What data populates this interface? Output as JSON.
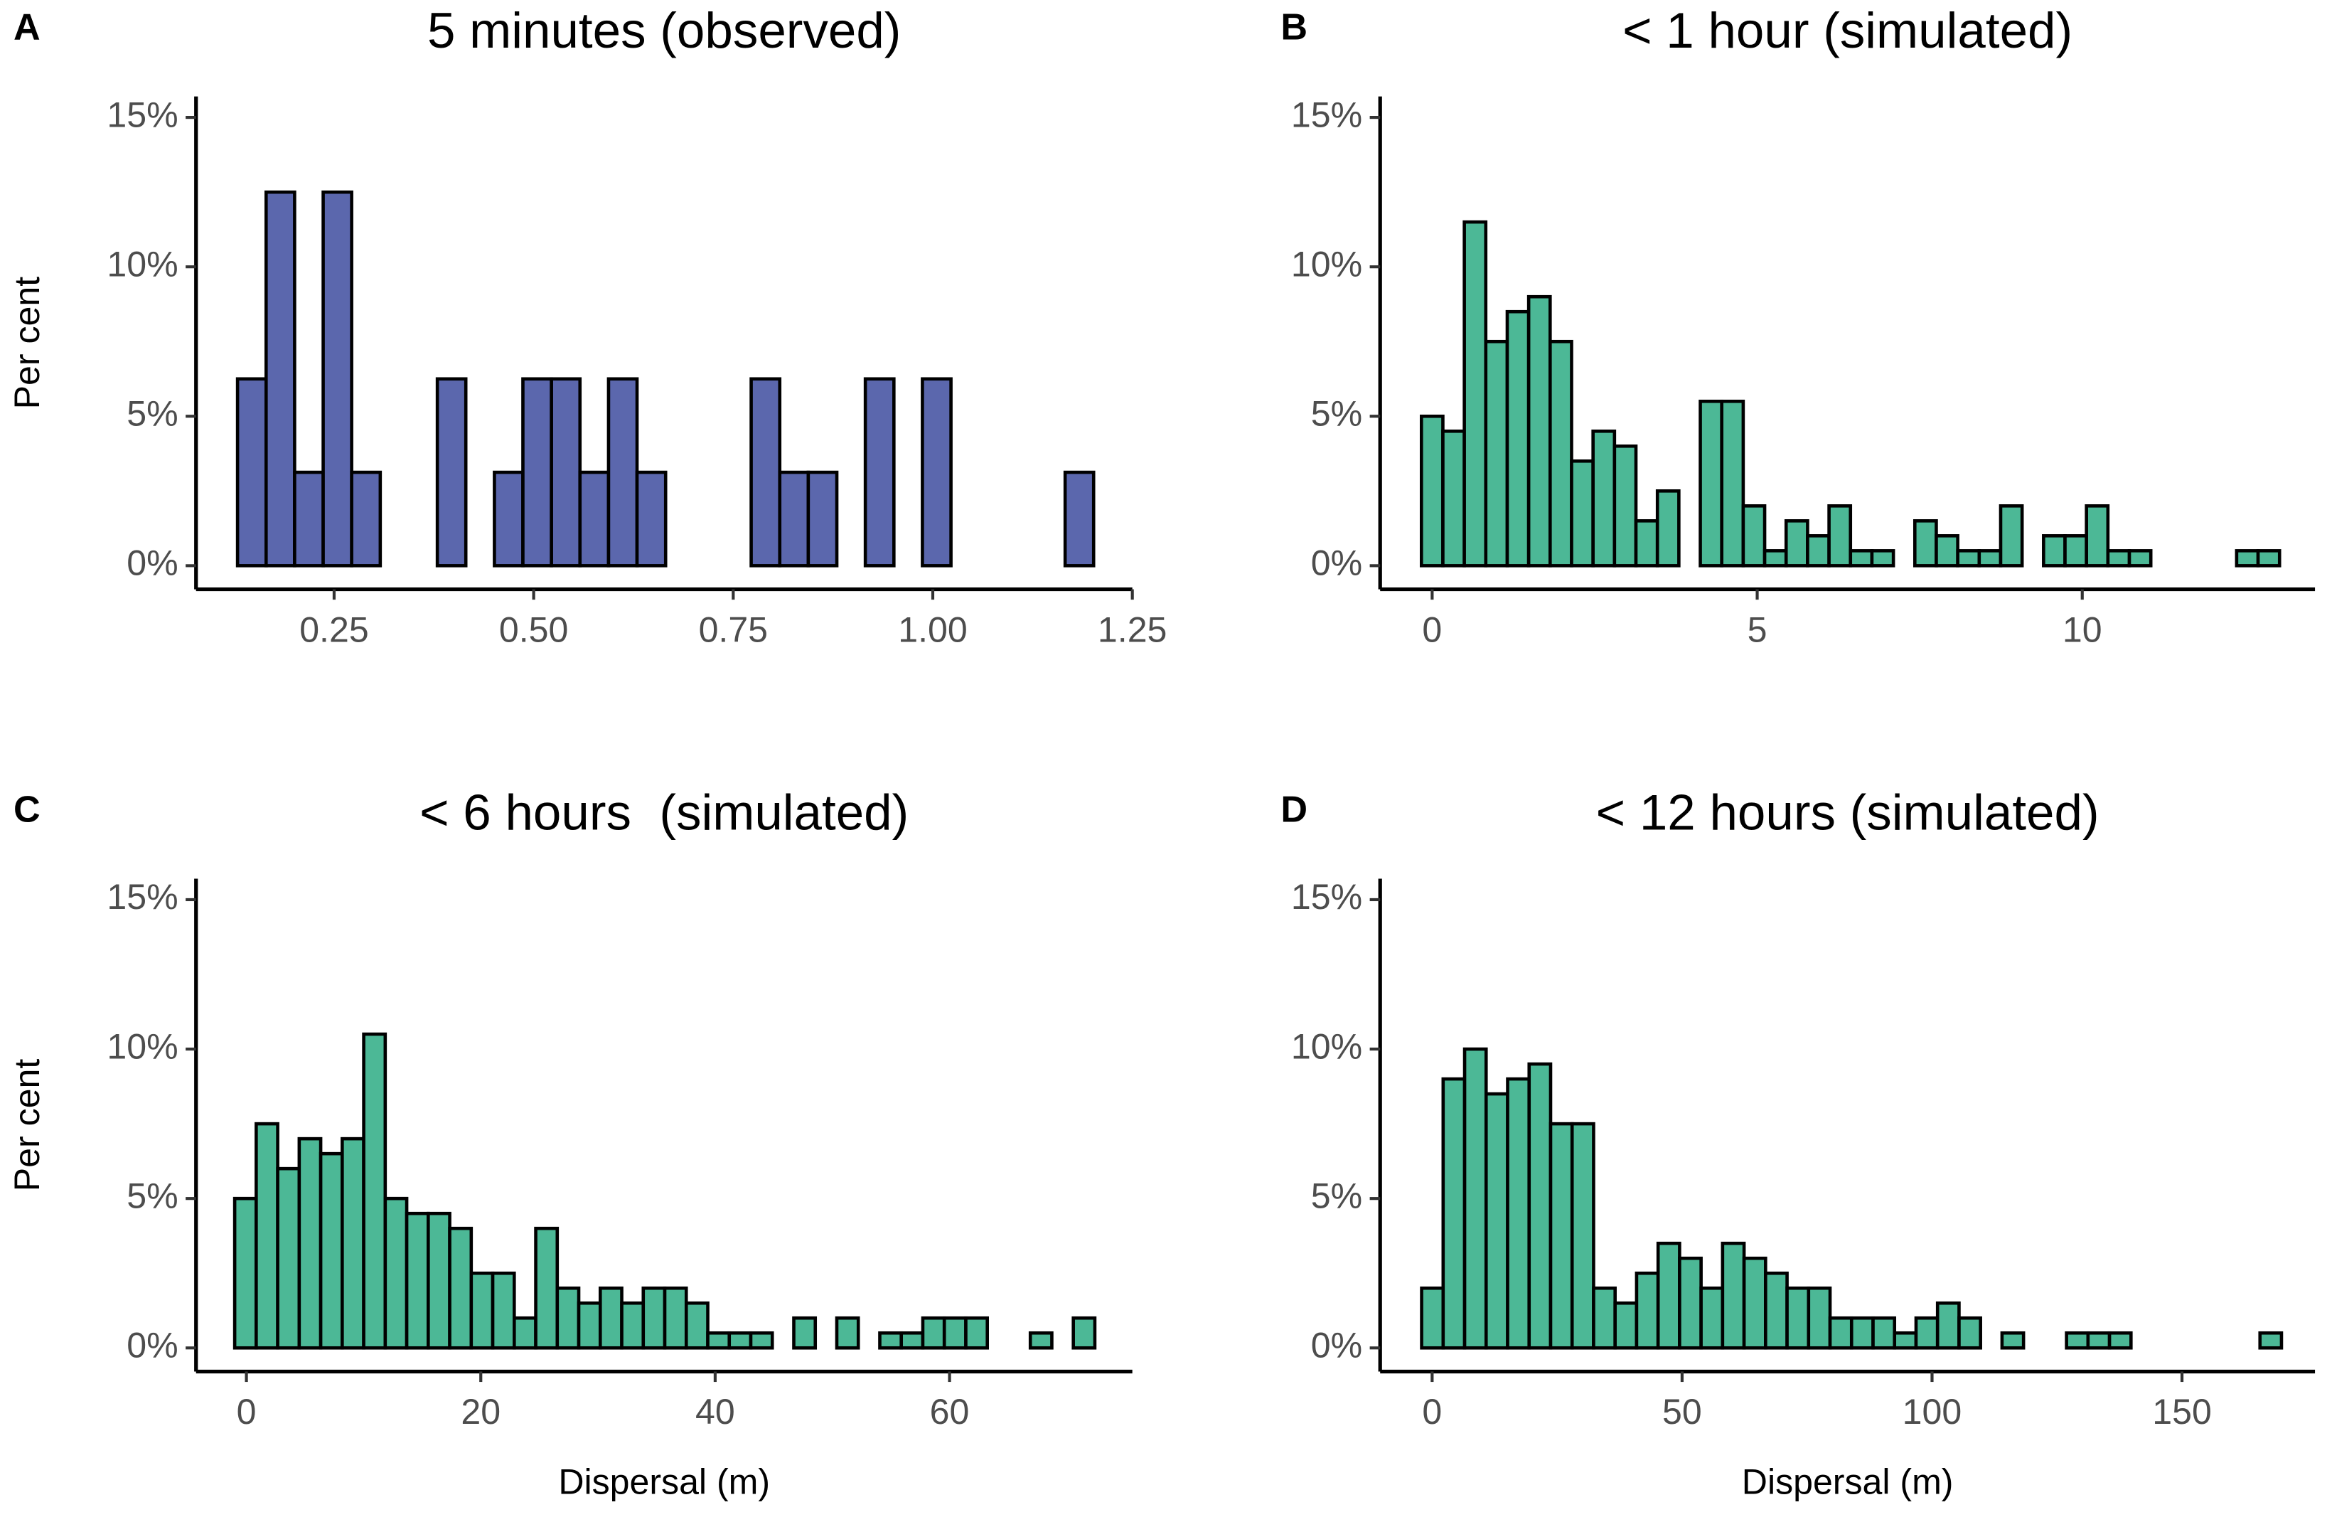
{
  "chart_data": [
    {
      "type": "histogram",
      "panel_label": "A",
      "title": "5 minutes (observed)",
      "ylabel": "Per cent",
      "color": "#5b67ad",
      "bins": [
        0.129,
        0.1648,
        0.2005,
        0.2363,
        0.272,
        0.3078,
        0.3435,
        0.3793,
        0.415,
        0.4508,
        0.4865,
        0.5223,
        0.558,
        0.5938,
        0.6295,
        0.6653,
        0.701,
        0.7368,
        0.7725,
        0.8083,
        0.844,
        0.8798,
        0.9155,
        0.9513,
        0.987,
        1.0228,
        1.0585,
        1.0943,
        1.13,
        1.1658,
        1.2015
      ],
      "values": [
        6.25,
        12.5,
        3.125,
        12.5,
        3.125,
        0,
        0,
        6.25,
        0,
        3.125,
        6.25,
        6.25,
        3.125,
        6.25,
        3.125,
        0,
        0,
        0,
        6.25,
        3.125,
        3.125,
        0,
        6.25,
        0,
        6.25,
        0,
        0,
        0,
        0,
        3.125
      ],
      "xlim": [
        0.077,
        1.25
      ],
      "ylim": [
        -0.79,
        15.7
      ],
      "xticks": [
        {
          "value": 0.25,
          "label": "0.25"
        },
        {
          "value": 0.5,
          "label": "0.50"
        },
        {
          "value": 0.75,
          "label": "0.75"
        },
        {
          "value": 1.0,
          "label": "1.00"
        },
        {
          "value": 1.25,
          "label": "1.25"
        }
      ],
      "yticks": [
        {
          "value": 0,
          "label": "0%"
        },
        {
          "value": 5,
          "label": "5%"
        },
        {
          "value": 10,
          "label": "10%"
        },
        {
          "value": 15,
          "label": "15%"
        }
      ]
    },
    {
      "type": "histogram",
      "panel_label": "B",
      "title": "< 1 hour (simulated)",
      "color": "#4cb896",
      "bins": [
        -0.165,
        0.165,
        0.495,
        0.825,
        1.155,
        1.485,
        1.815,
        2.145,
        2.475,
        2.805,
        3.135,
        3.465,
        3.795,
        4.125,
        4.455,
        4.785,
        5.115,
        5.445,
        5.775,
        6.105,
        6.435,
        6.765,
        7.095,
        7.425,
        7.755,
        8.085,
        8.415,
        8.745,
        9.075,
        9.405,
        9.735,
        10.065,
        10.395,
        10.725,
        11.055,
        11.385,
        11.715,
        12.045,
        12.375,
        12.705,
        13.035
      ],
      "values": [
        5,
        4.5,
        11.5,
        7.5,
        8.5,
        9,
        7.5,
        3.5,
        4.5,
        4,
        1.5,
        2.5,
        0,
        5.5,
        5.5,
        2,
        0.5,
        1.5,
        1,
        2,
        0.5,
        0.5,
        0,
        1.5,
        1,
        0.5,
        0.5,
        2,
        0,
        1,
        1,
        2,
        0.5,
        0.5,
        0,
        0,
        0,
        0,
        0.5,
        0.5
      ],
      "xlim": [
        -0.8,
        13.58
      ],
      "ylim": [
        -0.79,
        15.7
      ],
      "xticks": [
        0,
        5,
        10
      ],
      "yticks": [
        {
          "value": 0,
          "label": "0%"
        },
        {
          "value": 5,
          "label": "5%"
        },
        {
          "value": 10,
          "label": "10%"
        },
        {
          "value": 15,
          "label": "15%"
        }
      ]
    },
    {
      "type": "histogram",
      "panel_label": "C",
      "title": "< 6 hours  (simulated)",
      "ylabel": "Per cent",
      "xlabel": "Dispersal (m)",
      "color": "#4cb896",
      "bins": [
        -1,
        0.835,
        2.67,
        4.505,
        6.34,
        8.175,
        10.01,
        11.845,
        13.68,
        15.515,
        17.35,
        19.185,
        21.02,
        22.855,
        24.69,
        26.525,
        28.36,
        30.195,
        32.03,
        33.865,
        35.7,
        37.535,
        39.37,
        41.205,
        43.04,
        44.875,
        46.71,
        48.545,
        50.38,
        52.215,
        54.05,
        55.885,
        57.72,
        59.555,
        61.39,
        63.225,
        65.06,
        66.895,
        68.73,
        70.565,
        72.4
      ],
      "values": [
        5,
        7.5,
        6,
        7,
        6.5,
        7,
        10.5,
        5,
        4.5,
        4.5,
        4,
        2.5,
        2.5,
        1,
        4,
        2,
        1.5,
        2,
        1.5,
        2,
        2,
        1.5,
        0.5,
        0.5,
        0.5,
        0,
        1,
        0,
        1,
        0,
        0.5,
        0.5,
        1,
        1,
        1,
        0,
        0,
        0.5,
        0,
        1
      ],
      "xlim": [
        -4.3,
        75.6
      ],
      "ylim": [
        -0.79,
        15.7
      ],
      "xticks": [
        0,
        20,
        40,
        60
      ],
      "yticks": [
        {
          "value": 0,
          "label": "0%"
        },
        {
          "value": 5,
          "label": "5%"
        },
        {
          "value": 10,
          "label": "10%"
        },
        {
          "value": 15,
          "label": "15%"
        }
      ]
    },
    {
      "type": "histogram",
      "panel_label": "D",
      "title": "< 12 hours (simulated)",
      "xlabel": "Dispersal (m)",
      "color": "#4cb896",
      "bins": [
        -2.1,
        2.2,
        6.5,
        10.8,
        15.1,
        19.4,
        23.7,
        28,
        32.3,
        36.6,
        40.9,
        45.2,
        49.5,
        53.8,
        58.1,
        62.4,
        66.7,
        71,
        75.3,
        79.6,
        83.9,
        88.2,
        92.5,
        96.8,
        101.1,
        105.4,
        109.7,
        114,
        118.3,
        122.6,
        126.9,
        131.2,
        135.5,
        139.8,
        144.1,
        148.4,
        152.7,
        157,
        161.3,
        165.6,
        169.9
      ],
      "values": [
        2,
        9,
        10,
        8.5,
        9,
        9.5,
        7.5,
        7.5,
        2,
        1.5,
        2.5,
        3.5,
        3,
        2,
        3.5,
        3,
        2.5,
        2,
        2,
        1,
        1,
        1,
        0.5,
        1,
        1.5,
        1,
        0,
        0.5,
        0,
        0,
        0.5,
        0.5,
        0.5,
        0,
        0,
        0,
        0,
        0,
        0,
        0.5
      ],
      "xlim": [
        -10.4,
        176.6
      ],
      "ylim": [
        -0.79,
        15.7
      ],
      "xticks": [
        0,
        50,
        100,
        150
      ],
      "yticks": [
        {
          "value": 0,
          "label": "0%"
        },
        {
          "value": 5,
          "label": "5%"
        },
        {
          "value": 10,
          "label": "10%"
        },
        {
          "value": 15,
          "label": "15%"
        }
      ]
    }
  ]
}
